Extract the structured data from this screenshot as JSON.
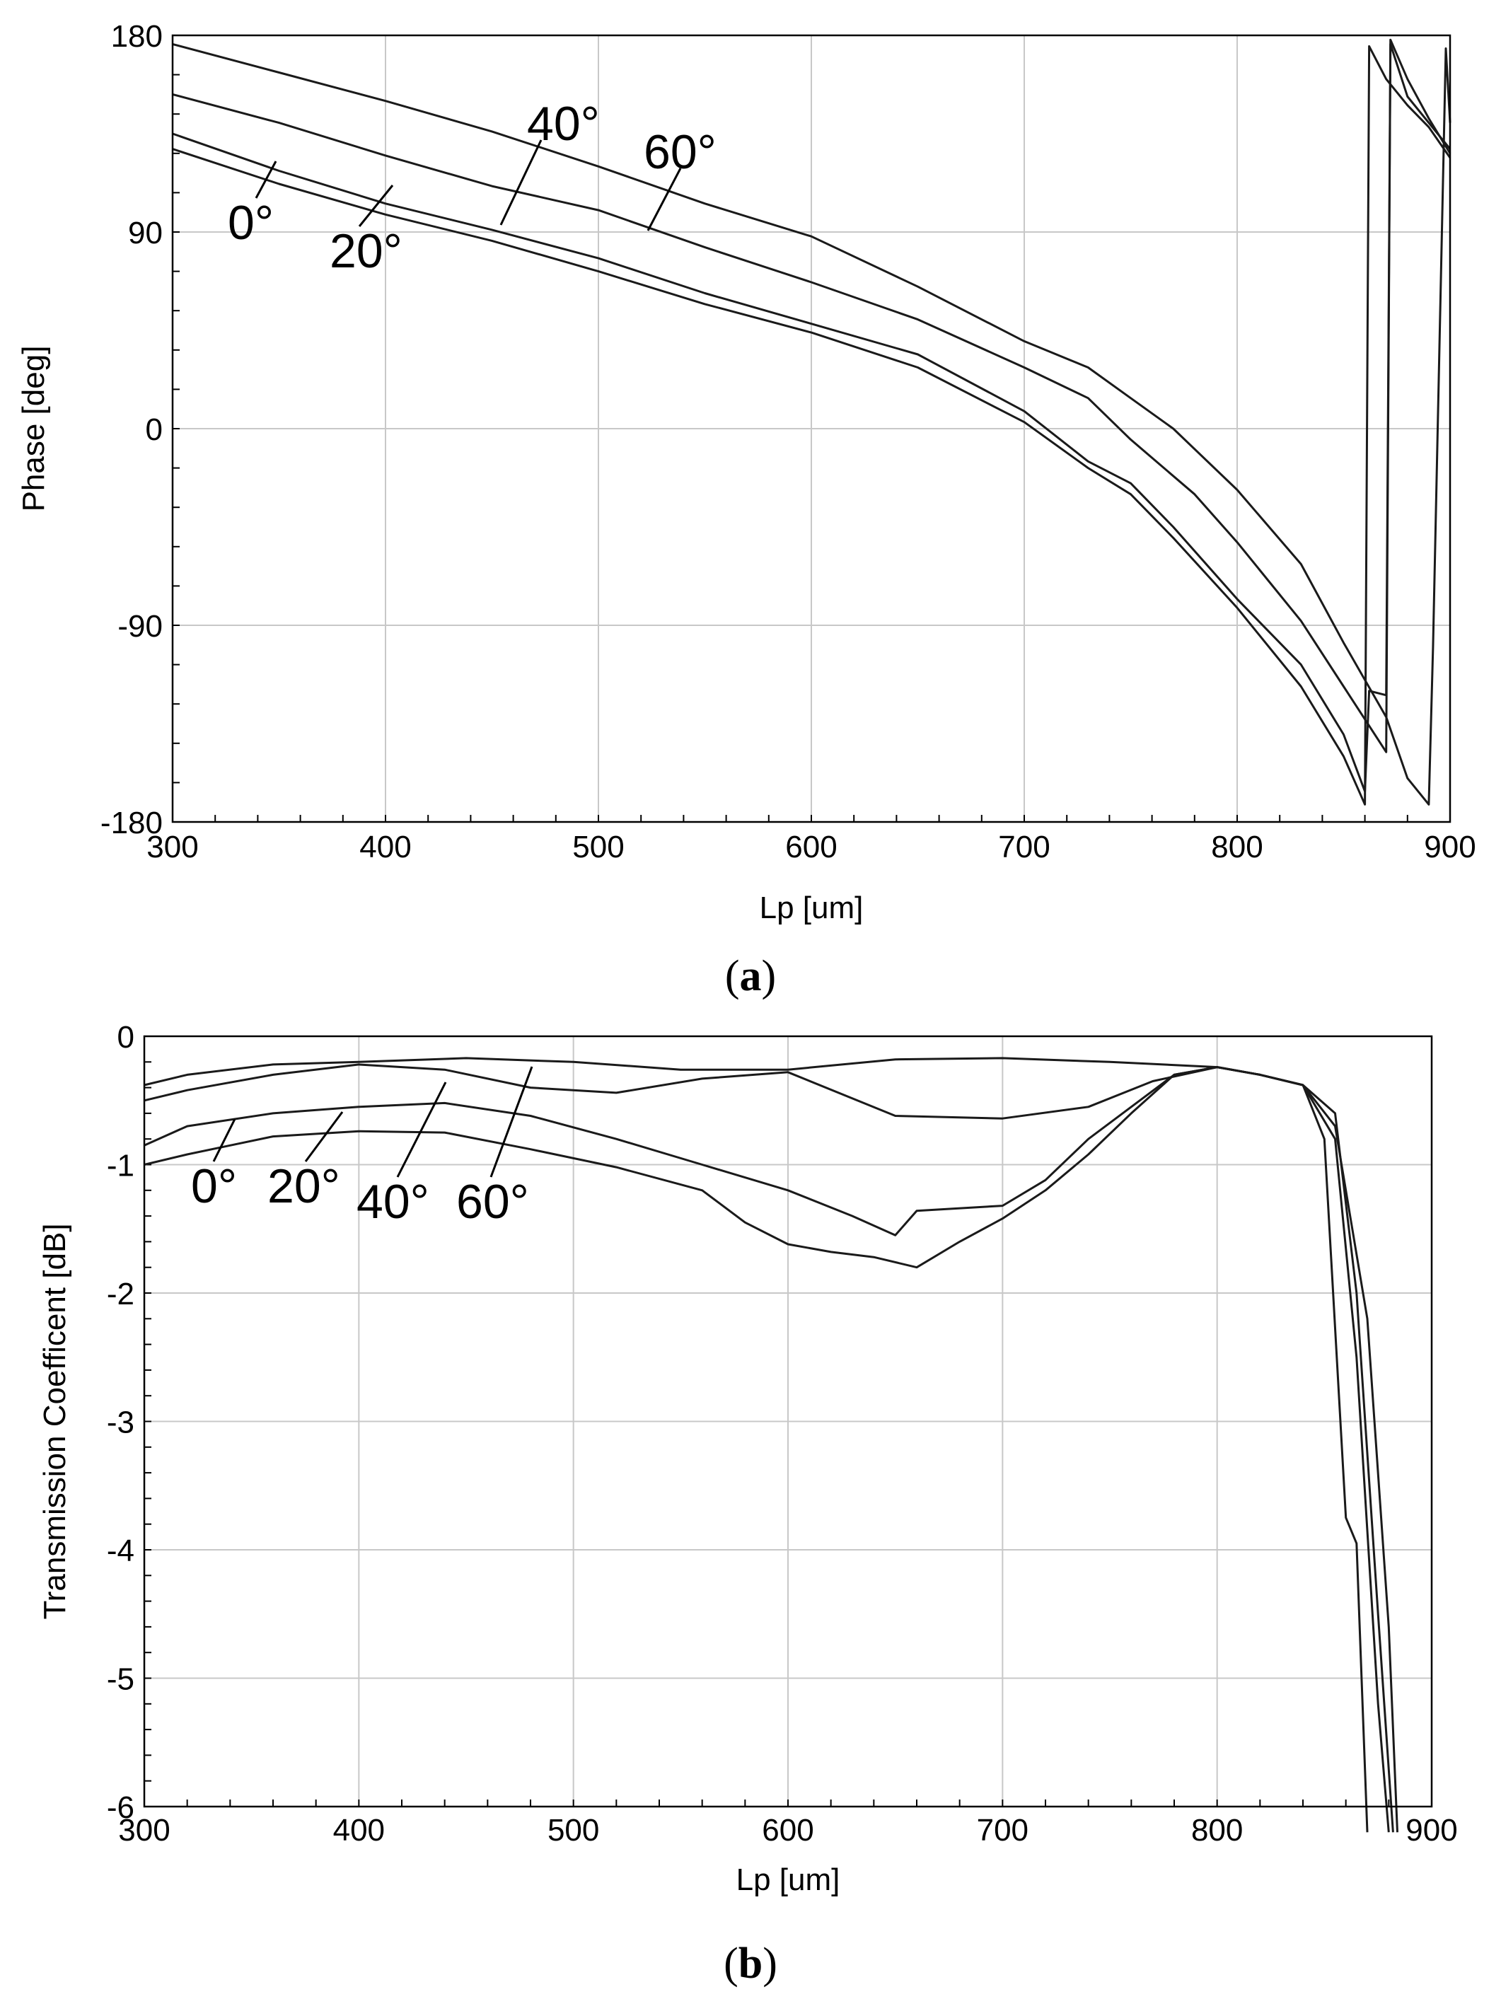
{
  "chart_data": [
    {
      "type": "line",
      "panel_label": "a",
      "xlabel": "Lp [um]",
      "ylabel": "Phase [deg]",
      "xlim": [
        300,
        900
      ],
      "ylim": [
        -180,
        180
      ],
      "xticks": [
        300,
        400,
        500,
        600,
        700,
        800,
        900
      ],
      "yticks": [
        180,
        90,
        0,
        -90,
        -180
      ],
      "grid": true,
      "series": [
        {
          "name": "0°",
          "points": [
            [
              300,
              128
            ],
            [
              350,
              112
            ],
            [
              400,
              98
            ],
            [
              450,
              86
            ],
            [
              500,
              72
            ],
            [
              550,
              57
            ],
            [
              600,
              44
            ],
            [
              650,
              28
            ],
            [
              700,
              3
            ],
            [
              730,
              -18
            ],
            [
              750,
              -30
            ],
            [
              770,
              -50
            ],
            [
              800,
              -82
            ],
            [
              830,
              -118
            ],
            [
              850,
              -150
            ],
            [
              860,
              -172
            ],
            [
              862,
              175
            ],
            [
              870,
              160
            ],
            [
              880,
              148
            ],
            [
              890,
              138
            ],
            [
              900,
              124
            ]
          ]
        },
        {
          "name": "20°",
          "points": [
            [
              300,
              135
            ],
            [
              350,
              118
            ],
            [
              400,
              103
            ],
            [
              450,
              91
            ],
            [
              500,
              78
            ],
            [
              550,
              62
            ],
            [
              600,
              48
            ],
            [
              650,
              34
            ],
            [
              700,
              8
            ],
            [
              730,
              -15
            ],
            [
              750,
              -25
            ],
            [
              770,
              -45
            ],
            [
              800,
              -78
            ],
            [
              830,
              -108
            ],
            [
              850,
              -140
            ],
            [
              860,
              -166
            ],
            [
              862,
              -120
            ],
            [
              870,
              -122
            ],
            [
              872,
              176
            ],
            [
              880,
              152
            ],
            [
              890,
              140
            ],
            [
              900,
              128
            ]
          ]
        },
        {
          "name": "40°",
          "points": [
            [
              300,
              153
            ],
            [
              350,
              140
            ],
            [
              400,
              125
            ],
            [
              450,
              111
            ],
            [
              500,
              100
            ],
            [
              550,
              83
            ],
            [
              600,
              67
            ],
            [
              650,
              50
            ],
            [
              700,
              28
            ],
            [
              730,
              14
            ],
            [
              750,
              -5
            ],
            [
              780,
              -30
            ],
            [
              800,
              -52
            ],
            [
              830,
              -88
            ],
            [
              850,
              -118
            ],
            [
              870,
              -148
            ],
            [
              872,
              178
            ],
            [
              880,
              160
            ],
            [
              890,
              142
            ],
            [
              900,
              126
            ]
          ]
        },
        {
          "name": "60°",
          "points": [
            [
              300,
              176
            ],
            [
              350,
              163
            ],
            [
              400,
              150
            ],
            [
              450,
              136
            ],
            [
              500,
              120
            ],
            [
              550,
              103
            ],
            [
              600,
              88
            ],
            [
              650,
              65
            ],
            [
              700,
              40
            ],
            [
              730,
              28
            ],
            [
              750,
              14
            ],
            [
              770,
              0
            ],
            [
              800,
              -28
            ],
            [
              830,
              -62
            ],
            [
              850,
              -98
            ],
            [
              870,
              -132
            ],
            [
              880,
              -160
            ],
            [
              890,
              -172
            ],
            [
              892,
              -100
            ],
            [
              898,
              174
            ],
            [
              900,
              140
            ]
          ]
        }
      ],
      "annotations": [
        {
          "text": "0°",
          "series": "0°"
        },
        {
          "text": "20°",
          "series": "20°"
        },
        {
          "text": "40°",
          "series": "40°"
        },
        {
          "text": "60°",
          "series": "60°"
        }
      ]
    },
    {
      "type": "line",
      "panel_label": "b",
      "xlabel": "Lp [um]",
      "ylabel": "Transmission Coefficent [dB]",
      "xlim": [
        300,
        900
      ],
      "ylim": [
        -6,
        0
      ],
      "xticks": [
        300,
        400,
        500,
        600,
        700,
        800,
        900
      ],
      "yticks": [
        0,
        -1,
        -2,
        -3,
        -4,
        -5,
        -6
      ],
      "grid": true,
      "series": [
        {
          "name": "0°",
          "points": [
            [
              300,
              -1.0
            ],
            [
              320,
              -0.92
            ],
            [
              340,
              -0.85
            ],
            [
              360,
              -0.78
            ],
            [
              400,
              -0.74
            ],
            [
              440,
              -0.75
            ],
            [
              480,
              -0.88
            ],
            [
              520,
              -1.02
            ],
            [
              560,
              -1.2
            ],
            [
              580,
              -1.45
            ],
            [
              600,
              -1.62
            ],
            [
              620,
              -1.68
            ],
            [
              640,
              -1.72
            ],
            [
              660,
              -1.8
            ],
            [
              680,
              -1.6
            ],
            [
              700,
              -1.42
            ],
            [
              720,
              -1.2
            ],
            [
              740,
              -0.92
            ],
            [
              760,
              -0.6
            ],
            [
              780,
              -0.3
            ],
            [
              800,
              -0.24
            ],
            [
              820,
              -0.3
            ],
            [
              840,
              -0.38
            ],
            [
              850,
              -0.8
            ],
            [
              860,
              -3.75
            ],
            [
              865,
              -3.95
            ],
            [
              870,
              -6.2
            ]
          ]
        },
        {
          "name": "20°",
          "points": [
            [
              300,
              -0.85
            ],
            [
              320,
              -0.7
            ],
            [
              360,
              -0.6
            ],
            [
              400,
              -0.55
            ],
            [
              440,
              -0.52
            ],
            [
              480,
              -0.62
            ],
            [
              520,
              -0.8
            ],
            [
              560,
              -1.0
            ],
            [
              600,
              -1.2
            ],
            [
              630,
              -1.4
            ],
            [
              650,
              -1.55
            ],
            [
              660,
              -1.36
            ],
            [
              700,
              -1.32
            ],
            [
              720,
              -1.12
            ],
            [
              740,
              -0.8
            ],
            [
              760,
              -0.55
            ],
            [
              780,
              -0.3
            ],
            [
              800,
              -0.24
            ],
            [
              820,
              -0.3
            ],
            [
              840,
              -0.38
            ],
            [
              855,
              -0.8
            ],
            [
              865,
              -2.5
            ],
            [
              875,
              -5.2
            ],
            [
              880,
              -6.2
            ]
          ]
        },
        {
          "name": "40°",
          "points": [
            [
              300,
              -0.5
            ],
            [
              320,
              -0.42
            ],
            [
              360,
              -0.3
            ],
            [
              400,
              -0.22
            ],
            [
              440,
              -0.26
            ],
            [
              480,
              -0.4
            ],
            [
              520,
              -0.44
            ],
            [
              560,
              -0.33
            ],
            [
              600,
              -0.28
            ],
            [
              650,
              -0.62
            ],
            [
              700,
              -0.64
            ],
            [
              740,
              -0.55
            ],
            [
              770,
              -0.35
            ],
            [
              800,
              -0.24
            ],
            [
              820,
              -0.3
            ],
            [
              840,
              -0.38
            ],
            [
              855,
              -0.6
            ],
            [
              865,
              -2.0
            ],
            [
              875,
              -4.5
            ],
            [
              882,
              -6.2
            ]
          ]
        },
        {
          "name": "60°",
          "points": [
            [
              300,
              -0.38
            ],
            [
              320,
              -0.3
            ],
            [
              360,
              -0.22
            ],
            [
              400,
              -0.2
            ],
            [
              450,
              -0.17
            ],
            [
              500,
              -0.2
            ],
            [
              550,
              -0.26
            ],
            [
              600,
              -0.26
            ],
            [
              650,
              -0.18
            ],
            [
              700,
              -0.17
            ],
            [
              750,
              -0.2
            ],
            [
              800,
              -0.24
            ],
            [
              820,
              -0.3
            ],
            [
              840,
              -0.38
            ],
            [
              855,
              -0.7
            ],
            [
              870,
              -2.2
            ],
            [
              880,
              -4.6
            ],
            [
              884,
              -6.2
            ]
          ]
        }
      ],
      "annotations": [
        {
          "text": "0°",
          "series": "0°"
        },
        {
          "text": "20°",
          "series": "20°"
        },
        {
          "text": "40°",
          "series": "40°"
        },
        {
          "text": "60°",
          "series": "60°"
        }
      ]
    }
  ]
}
